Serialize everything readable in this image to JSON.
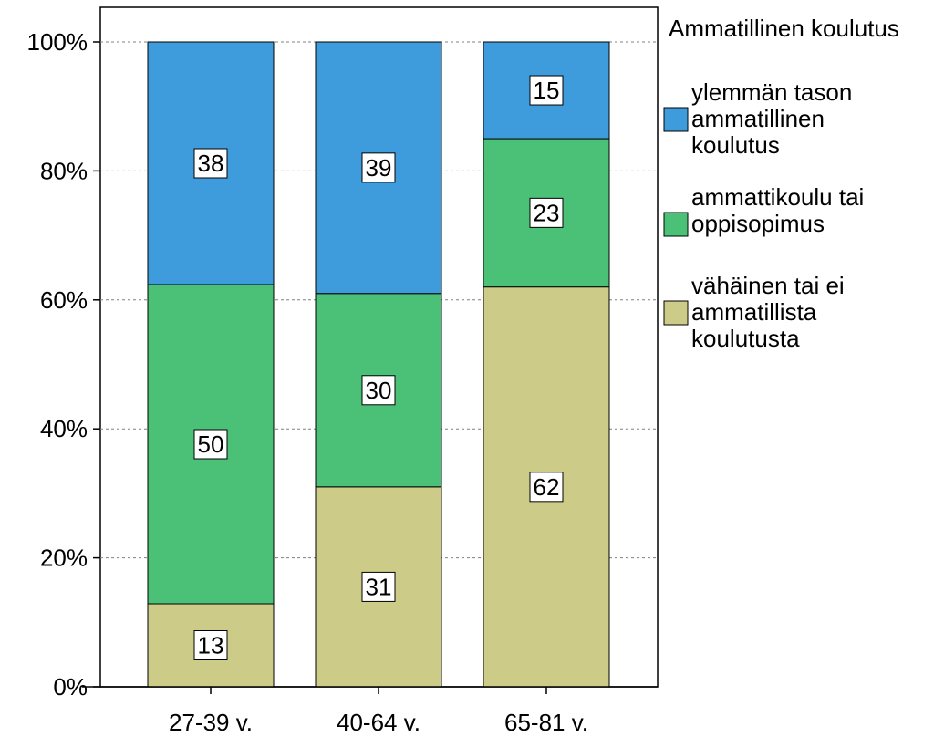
{
  "chart_data": {
    "type": "bar",
    "stacked": true,
    "normalized": true,
    "categories": [
      "27-39 v.",
      "40-64 v.",
      "65-81 v."
    ],
    "series": [
      {
        "name": "vähäinen tai ei ammatillista koulutusta",
        "values": [
          13,
          31,
          62
        ],
        "color": "#cccc88"
      },
      {
        "name": "ammattikoulu tai oppisopimus",
        "values": [
          50,
          30,
          23
        ],
        "color": "#4bc178"
      },
      {
        "name": "ylemmän tason ammatillinen koulutus",
        "values": [
          38,
          39,
          15
        ],
        "color": "#3e9bdc"
      }
    ],
    "ylim": [
      0,
      100
    ],
    "yticks": [
      "0%",
      "20%",
      "40%",
      "60%",
      "80%",
      "100%"
    ],
    "grid": true,
    "legend": {
      "title": "Ammatillinen koulutus",
      "placement": "right",
      "entries": [
        {
          "lines": [
            "ylemmän tason",
            "ammatillinen",
            "koulutus"
          ]
        },
        {
          "lines": [
            "ammattikoulu tai",
            "oppisopimus"
          ]
        },
        {
          "lines": [
            "vähäinen tai ei",
            "ammatillista",
            "koulutusta"
          ]
        }
      ]
    }
  }
}
